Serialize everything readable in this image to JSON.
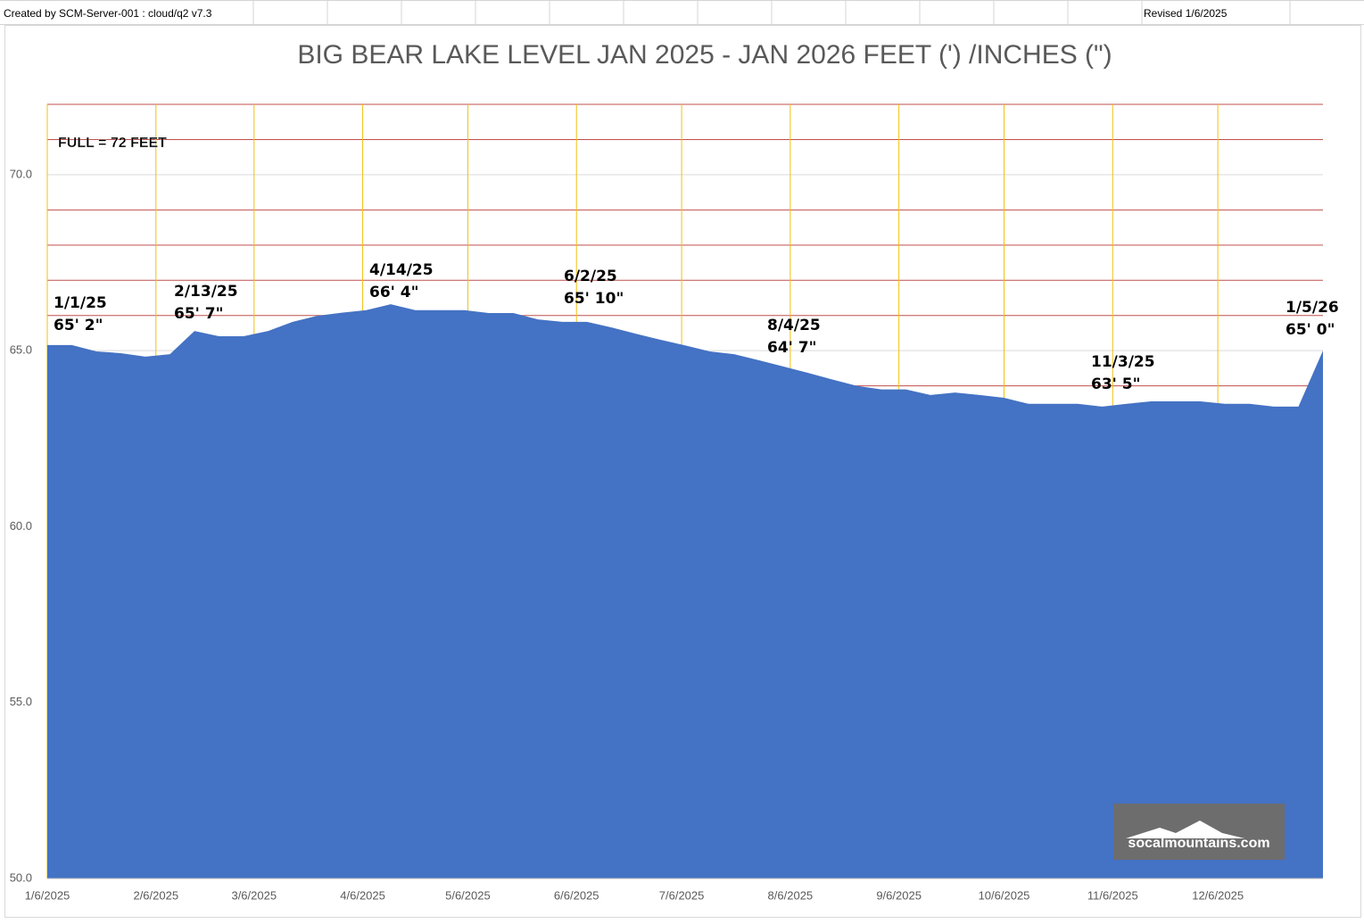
{
  "sheet": {
    "created_by": "Created by SCM-Server-001 : cloud/q2 v7.3",
    "revised": "Revised 1/6/2025"
  },
  "chart_data": {
    "type": "area",
    "title": "BIG BEAR LAKE LEVEL JAN 2025 - JAN 2026 FEET (') /INCHES (\")",
    "color": "#4472c4",
    "grid_color": "#c0504d",
    "xgrid_color": "#f2c010",
    "x": [
      "1/6/2025",
      "1/13/2025",
      "1/20/2025",
      "1/27/2025",
      "2/3/2025",
      "2/10/2025",
      "2/17/2025",
      "2/24/2025",
      "3/3/2025",
      "3/10/2025",
      "3/17/2025",
      "3/24/2025",
      "3/31/2025",
      "4/7/2025",
      "4/14/2025",
      "4/21/2025",
      "4/28/2025",
      "5/5/2025",
      "5/12/2025",
      "5/19/2025",
      "5/26/2025",
      "6/2/2025",
      "6/9/2025",
      "6/16/2025",
      "6/23/2025",
      "6/30/2025",
      "7/7/2025",
      "7/14/2025",
      "7/21/2025",
      "7/28/2025",
      "8/4/2025",
      "8/11/2025",
      "8/18/2025",
      "8/25/2025",
      "9/1/2025",
      "9/8/2025",
      "9/15/2025",
      "9/22/2025",
      "9/29/2025",
      "10/6/2025",
      "10/13/2025",
      "10/20/2025",
      "10/27/2025",
      "11/3/2025",
      "11/10/2025",
      "11/17/2025",
      "11/24/2025",
      "12/1/2025",
      "12/8/2025",
      "12/15/2025",
      "12/22/2025",
      "12/29/2025",
      "1/5/2026"
    ],
    "values": [
      65.16,
      65.16,
      64.98,
      64.93,
      64.83,
      64.9,
      65.56,
      65.41,
      65.41,
      65.56,
      65.82,
      65.99,
      66.08,
      66.15,
      66.32,
      66.15,
      66.15,
      66.15,
      66.07,
      66.07,
      65.89,
      65.82,
      65.82,
      65.66,
      65.48,
      65.31,
      65.15,
      64.98,
      64.9,
      64.73,
      64.55,
      64.37,
      64.18,
      64.0,
      63.9,
      63.9,
      63.74,
      63.81,
      63.74,
      63.66,
      63.49,
      63.49,
      63.49,
      63.41,
      63.49,
      63.56,
      63.56,
      63.56,
      63.49,
      63.49,
      63.41,
      63.41,
      65.0
    ],
    "xlim": [
      "1/6/2025",
      "1/5/2026"
    ],
    "xticks": [
      "1/6/2025",
      "2/6/2025",
      "3/6/2025",
      "4/6/2025",
      "5/6/2025",
      "6/6/2025",
      "7/6/2025",
      "8/6/2025",
      "9/6/2025",
      "10/6/2025",
      "11/6/2025",
      "12/6/2025"
    ],
    "ylim": [
      50,
      72
    ],
    "yticks": [
      {
        "value": 50,
        "label": "50.0"
      },
      {
        "value": 55,
        "label": "55.0"
      },
      {
        "value": 60,
        "label": "60.0"
      },
      {
        "value": 65,
        "label": "65.0"
      },
      {
        "value": 70,
        "label": "70.0"
      }
    ],
    "ygrid": [
      51,
      52,
      53,
      54,
      56,
      57,
      58,
      59,
      61,
      62,
      63,
      64,
      66,
      67,
      68,
      69,
      71,
      72
    ],
    "full_note": "FULL = 72 FEET",
    "annotations": [
      {
        "date": "1/1/25",
        "level": "65' 2\""
      },
      {
        "date": "2/13/25",
        "level": "65' 7\""
      },
      {
        "date": "4/14/25",
        "level": "66' 4\""
      },
      {
        "date": "6/2/25",
        "level": "65' 10\""
      },
      {
        "date": "8/4/25",
        "level": "64' 7\""
      },
      {
        "date": "11/3/25",
        "level": "63' 5\""
      },
      {
        "date": "1/5/26",
        "level": "65' 0\""
      }
    ],
    "logo": "socalmountains.com"
  }
}
